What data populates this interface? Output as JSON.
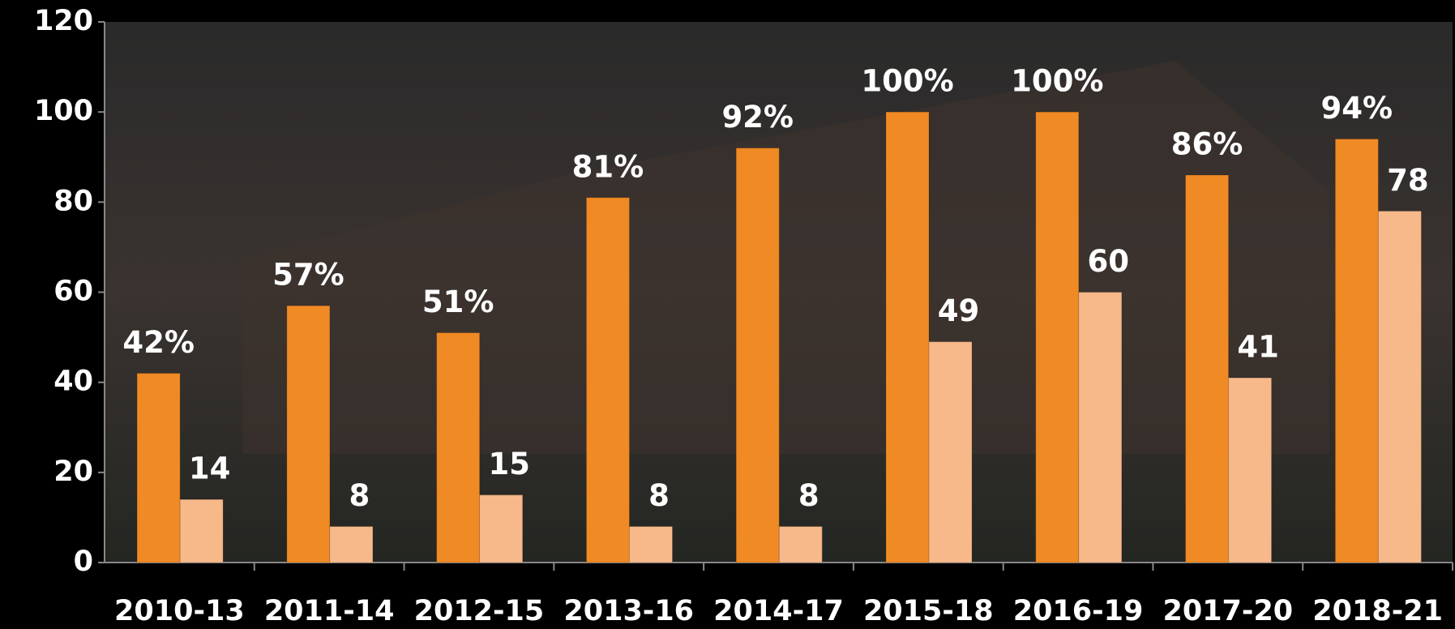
{
  "chart_data": {
    "type": "bar",
    "categories": [
      "2010-13",
      "2011-14",
      "2012-15",
      "2013-16",
      "2014-17",
      "2015-18",
      "2016-19",
      "2017-20",
      "2018-21"
    ],
    "series": [
      {
        "color": "#f08a24",
        "values": [
          42,
          57,
          51,
          81,
          92,
          100,
          100,
          86,
          94
        ],
        "value_labels": [
          "42%",
          "57%",
          "51%",
          "81%",
          "92%",
          "100%",
          "100%",
          "86%",
          "94%"
        ]
      },
      {
        "color": "#f7b98a",
        "values": [
          14,
          8,
          15,
          8,
          8,
          49,
          60,
          41,
          78
        ]
      }
    ],
    "ylim": [
      0,
      120
    ],
    "yticks": [
      0,
      20,
      40,
      60,
      80,
      100,
      120
    ],
    "grid": false
  }
}
